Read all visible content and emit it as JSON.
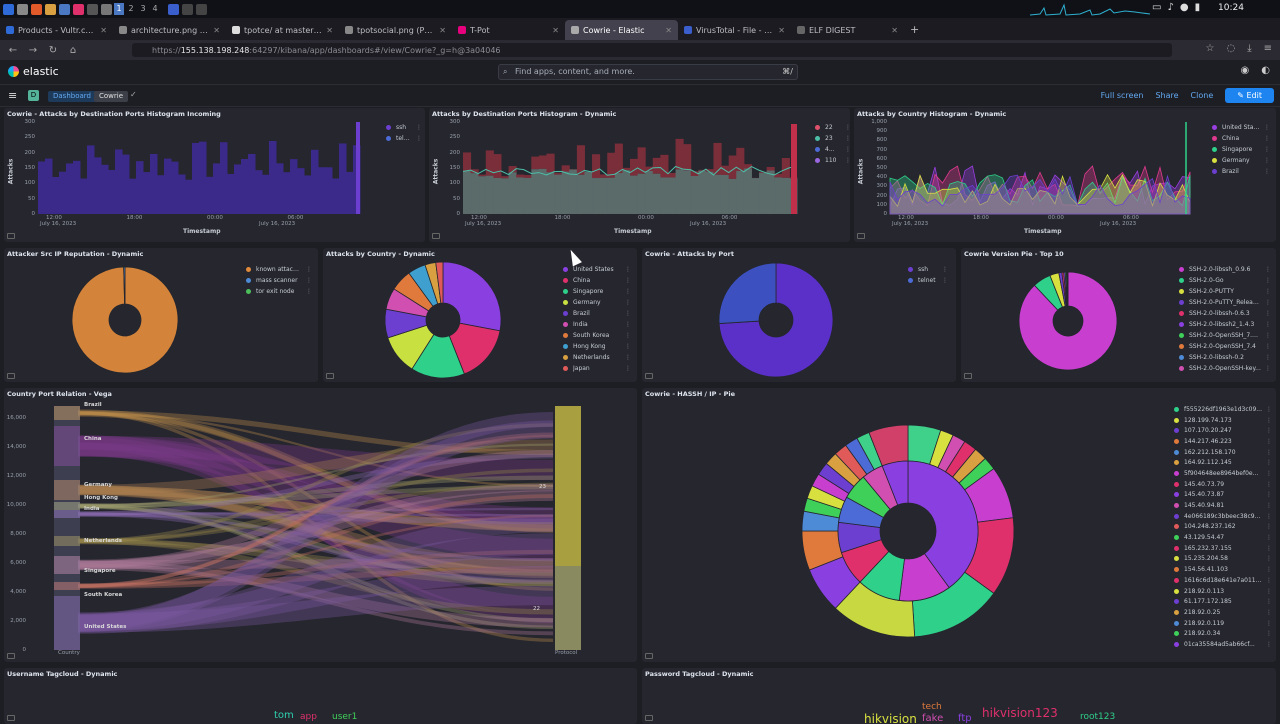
{
  "taskbar": {
    "workspaces": [
      "1",
      "2",
      "3",
      "4"
    ],
    "clock": "10:24"
  },
  "browser_tabs": [
    {
      "title": "Products - Vultr.com",
      "color": "#2f6bd8",
      "active": false
    },
    {
      "title": "architecture.png (PNG Image",
      "color": "#888",
      "active": false
    },
    {
      "title": "tpotce/ at master · telek",
      "color": "#ddd",
      "active": false
    },
    {
      "title": "tpotsocial.png (PNG Image, 1",
      "color": "#888",
      "active": false
    },
    {
      "title": "T-Pot",
      "color": "#e6007e",
      "active": false
    },
    {
      "title": "Cowrie - Elastic",
      "color": "#aaa",
      "active": true
    },
    {
      "title": "VirusTotal - File - 1f66f7",
      "color": "#3a5fcd",
      "active": false
    },
    {
      "title": "ELF DIGEST",
      "color": "#666",
      "active": false
    }
  ],
  "url": {
    "prefix": "https://",
    "host": "155.138.198.248",
    "rest": ":64297/kibana/app/dashboards#/view/Cowrie?_g=h@3a04046"
  },
  "kibana": {
    "logo": "elastic",
    "search_placeholder": "Find apps, content, and more.",
    "search_shortcut": "⌘/",
    "space_initial": "D",
    "breadcrumbs": [
      "Dashboard",
      "Cowrie"
    ],
    "actions": {
      "fullscreen": "Full screen",
      "share": "Share",
      "clone": "Clone",
      "edit": "Edit"
    }
  },
  "panels": {
    "p1": {
      "title": "Cowrie - Attacks by Destination Ports Histogram Incoming",
      "ylabel": "Attacks",
      "xlabel": "Timestamp",
      "yticks": [
        "300",
        "250",
        "200",
        "150",
        "100",
        "50",
        "0"
      ],
      "xticks": [
        "12:00",
        "18:00",
        "00:00",
        "06:00"
      ],
      "xsub": "July 16, 2023",
      "legend": [
        {
          "name": "ssh",
          "color": "#6c3fd0"
        },
        {
          "name": "teln...",
          "color": "#4d6bd6"
        }
      ]
    },
    "p2": {
      "title": "Attacks by Destination Ports Histogram - Dynamic",
      "ylabel": "Attacks",
      "xlabel": "Timestamp",
      "yticks": [
        "300",
        "250",
        "200",
        "150",
        "100",
        "50",
        "0"
      ],
      "xticks": [
        "12:00",
        "18:00",
        "00:00",
        "06:00"
      ],
      "xsub": "July 16, 2023",
      "legend": [
        {
          "name": "22",
          "color": "#e0526b"
        },
        {
          "name": "23",
          "color": "#4dbfa8"
        },
        {
          "name": "4...",
          "color": "#4d6bd6"
        },
        {
          "name": "110",
          "color": "#9a67e0"
        }
      ]
    },
    "p3": {
      "title": "Attacks by Country Histogram - Dynamic",
      "ylabel": "Attacks",
      "xlabel": "Timestamp",
      "yticks": [
        "1,000",
        "900",
        "800",
        "700",
        "600",
        "500",
        "400",
        "300",
        "200",
        "100",
        "0"
      ],
      "xticks": [
        "12:00",
        "18:00",
        "00:00",
        "06:00"
      ],
      "xsub": "July 16, 2023",
      "legend": [
        {
          "name": "United Stat...",
          "color": "#9a3fe0"
        },
        {
          "name": "China",
          "color": "#e03a8e"
        },
        {
          "name": "Singapore",
          "color": "#2fd08a"
        },
        {
          "name": "Germany",
          "color": "#d8e040"
        },
        {
          "name": "Brazil",
          "color": "#6c3fd0"
        }
      ]
    },
    "p4": {
      "title": "Attacker Src IP Reputation - Dynamic",
      "legend": [
        {
          "name": "known attacker",
          "color": "#e08a3c"
        },
        {
          "name": "mass scanner",
          "color": "#4d8bd6"
        },
        {
          "name": "tor exit node",
          "color": "#4dbf5a"
        }
      ]
    },
    "p5": {
      "title": "Attacks by Country - Dynamic",
      "legend": [
        {
          "name": "United States",
          "color": "#8a3fe0"
        },
        {
          "name": "China",
          "color": "#e0306b"
        },
        {
          "name": "Singapore",
          "color": "#2fd08a"
        },
        {
          "name": "Germany",
          "color": "#c8e040"
        },
        {
          "name": "Brazil",
          "color": "#6c3fd0"
        },
        {
          "name": "India",
          "color": "#d04fb0"
        },
        {
          "name": "South Korea",
          "color": "#e07a3c"
        },
        {
          "name": "Hong Kong",
          "color": "#3fa0d0"
        },
        {
          "name": "Netherlands",
          "color": "#d8a040"
        },
        {
          "name": "Japan",
          "color": "#e05a5a"
        }
      ]
    },
    "p6": {
      "title": "Cowrie - Attacks by Port",
      "legend": [
        {
          "name": "ssh",
          "color": "#6c3fd0"
        },
        {
          "name": "telnet",
          "color": "#4d6bd6"
        }
      ]
    },
    "p7": {
      "title": "Cowrie Version Pie - Top 10",
      "legend": [
        {
          "name": "SSH-2.0-libssh_0.9.6",
          "color": "#c83fd0"
        },
        {
          "name": "SSH-2.0-Go",
          "color": "#2fd08a"
        },
        {
          "name": "SSH-2.0-PUTTY",
          "color": "#d8e040"
        },
        {
          "name": "SSH-2.0-PuTTY_Releas...",
          "color": "#6c3fd0"
        },
        {
          "name": "SSH-2.0-libssh-0.6.3",
          "color": "#e0306b"
        },
        {
          "name": "SSH-2.0-libssh2_1.4.3",
          "color": "#8a3fe0"
        },
        {
          "name": "SSH-2.0-OpenSSH_7.9p1",
          "color": "#3fd05a"
        },
        {
          "name": "SSH-2.0-OpenSSH_7.4",
          "color": "#e07a3c"
        },
        {
          "name": "SSH-2.0-libssh-0.2",
          "color": "#4d8bd6"
        },
        {
          "name": "SSH-2.0-OpenSSH-key...",
          "color": "#d04fb0"
        }
      ]
    },
    "p8": {
      "title": "Country Port Relation - Vega",
      "yticks": [
        "16,000",
        "14,000",
        "12,000",
        "10,000",
        "8,000",
        "6,000",
        "4,000",
        "2,000",
        "0"
      ],
      "countries": [
        "Brazil",
        "China",
        "Germany",
        "Hong Kong",
        "India",
        "Netherlands",
        "Singapore",
        "South Korea",
        "United States"
      ],
      "ports": [
        "23",
        "22"
      ],
      "xleft": "Country",
      "xright": "Protocol"
    },
    "p9": {
      "title": "Cowrie - HASSH / IP - Pie",
      "legend": [
        {
          "name": "f555226df1963e1d3c09...",
          "color": "#2fd08a"
        },
        {
          "name": "128.199.74.173",
          "color": "#d8e040"
        },
        {
          "name": "107.170.20.247",
          "color": "#6c3fd0"
        },
        {
          "name": "144.217.46.223",
          "color": "#e07a3c"
        },
        {
          "name": "162.212.158.170",
          "color": "#4d8bd6"
        },
        {
          "name": "164.92.112.145",
          "color": "#d8a040"
        },
        {
          "name": "5f904648ee8964bef0e...",
          "color": "#c83fd0"
        },
        {
          "name": "145.40.73.79",
          "color": "#e0306b"
        },
        {
          "name": "145.40.73.87",
          "color": "#8a3fe0"
        },
        {
          "name": "145.40.94.81",
          "color": "#d04fb0"
        },
        {
          "name": "4e066189c3bbeec38c9...",
          "color": "#6c3fd0"
        },
        {
          "name": "104.248.237.162",
          "color": "#e05a5a"
        },
        {
          "name": "43.129.54.47",
          "color": "#3fd05a"
        },
        {
          "name": "165.232.37.155",
          "color": "#e0306b"
        },
        {
          "name": "15.235.204.58",
          "color": "#d8e040"
        },
        {
          "name": "154.56.41.103",
          "color": "#e07a3c"
        },
        {
          "name": "1616c6d18e641e7a0116...",
          "color": "#e0306b"
        },
        {
          "name": "218.92.0.113",
          "color": "#d8e040"
        },
        {
          "name": "61.177.172.185",
          "color": "#6c3fd0"
        },
        {
          "name": "218.92.0.25",
          "color": "#d8a040"
        },
        {
          "name": "218.92.0.119",
          "color": "#4d8bd6"
        },
        {
          "name": "218.92.0.34",
          "color": "#3fd05a"
        },
        {
          "name": "01ca35584ad5ab66cf...",
          "color": "#8a3fe0"
        }
      ]
    },
    "p10": {
      "title": "Username Tagcloud - Dynamic",
      "tags": [
        {
          "text": "tom",
          "color": "#2fd0b0"
        },
        {
          "text": "app",
          "color": "#e0306b"
        },
        {
          "text": "user1",
          "color": "#3fd05a"
        }
      ]
    },
    "p11": {
      "title": "Password Tagcloud - Dynamic",
      "tags": [
        {
          "text": "tech",
          "color": "#e07a3c"
        },
        {
          "text": "hikvision",
          "color": "#d8e040"
        },
        {
          "text": "fake",
          "color": "#d04fb0"
        },
        {
          "text": "ftp",
          "color": "#8a3fe0"
        },
        {
          "text": "hikvision123",
          "color": "#e0306b"
        },
        {
          "text": "root123",
          "color": "#2fd08a"
        }
      ]
    }
  }
}
